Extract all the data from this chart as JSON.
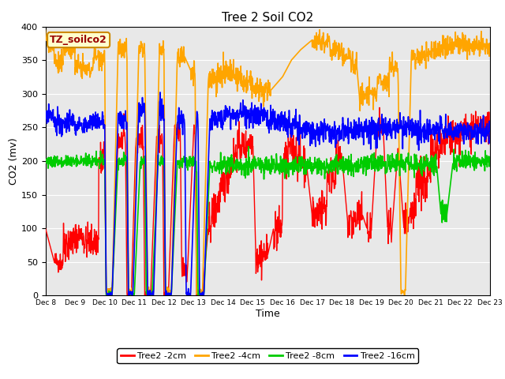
{
  "title": "Tree 2 Soil CO2",
  "xlabel": "Time",
  "ylabel": "CO2 (mv)",
  "ylim": [
    0,
    400
  ],
  "xlim_days": [
    8,
    23
  ],
  "annotation": "TZ_soilco2",
  "bg_color": "#e8e8e8",
  "fig_bg": "#ffffff",
  "legend_labels": [
    "Tree2 -2cm",
    "Tree2 -4cm",
    "Tree2 -8cm",
    "Tree2 -16cm"
  ],
  "legend_colors": [
    "#ff0000",
    "#ffa500",
    "#00cc00",
    "#0000ff"
  ],
  "x_ticks": [
    8,
    9,
    10,
    11,
    12,
    13,
    14,
    15,
    16,
    17,
    18,
    19,
    20,
    21,
    22,
    23
  ],
  "x_tick_labels": [
    "Dec 8",
    "Dec 9",
    "Dec 10",
    "Dec 11",
    "Dec 12",
    "Dec 13",
    "Dec 14",
    "Dec 15",
    "Dec 16",
    "Dec 17",
    "Dec 18",
    "Dec 19",
    "Dec 20",
    "Dec 21",
    "Dec 22",
    "Dec 23"
  ],
  "y_ticks": [
    0,
    50,
    100,
    150,
    200,
    250,
    300,
    350,
    400
  ]
}
